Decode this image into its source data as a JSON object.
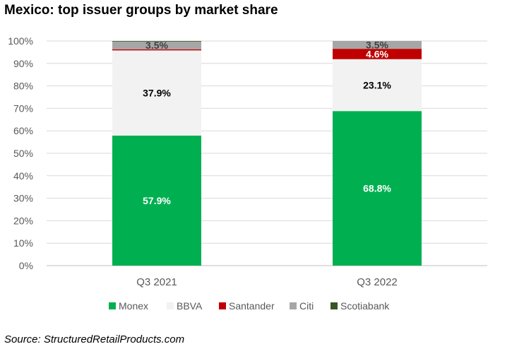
{
  "title": "Mexico: top issuer groups by market share",
  "source": "Source: StructuredRetailProducts.com",
  "chart_data": {
    "type": "bar",
    "stacked": true,
    "categories": [
      "Q3 2021",
      "Q3 2022"
    ],
    "ylim": [
      0,
      100
    ],
    "y_ticks": [
      "0%",
      "10%",
      "20%",
      "30%",
      "40%",
      "50%",
      "60%",
      "70%",
      "80%",
      "90%",
      "100%"
    ],
    "grid": true,
    "legend_position": "bottom",
    "series": [
      {
        "name": "Monex",
        "color": "#00b050",
        "values": [
          57.9,
          68.8
        ],
        "labels": [
          "57.9%",
          "68.8%"
        ],
        "label_color": "#ffffff"
      },
      {
        "name": "BBVA",
        "color": "#f2f2f2",
        "values": [
          37.9,
          23.1
        ],
        "labels": [
          "37.9%",
          "23.1%"
        ],
        "label_color": "#000000"
      },
      {
        "name": "Santander",
        "color": "#c00000",
        "values": [
          0.5,
          4.6
        ],
        "labels": [
          "",
          "4.6%"
        ],
        "label_color": "#ffffff"
      },
      {
        "name": "Citi",
        "color": "#a6a6a6",
        "values": [
          3.5,
          3.5
        ],
        "labels": [
          "3.5%",
          "3.5%"
        ],
        "label_color": "#404040"
      },
      {
        "name": "Scotiabank",
        "color": "#375623",
        "values": [
          0.2,
          0.0
        ],
        "labels": [
          "",
          ""
        ],
        "label_color": "#ffffff"
      }
    ]
  }
}
